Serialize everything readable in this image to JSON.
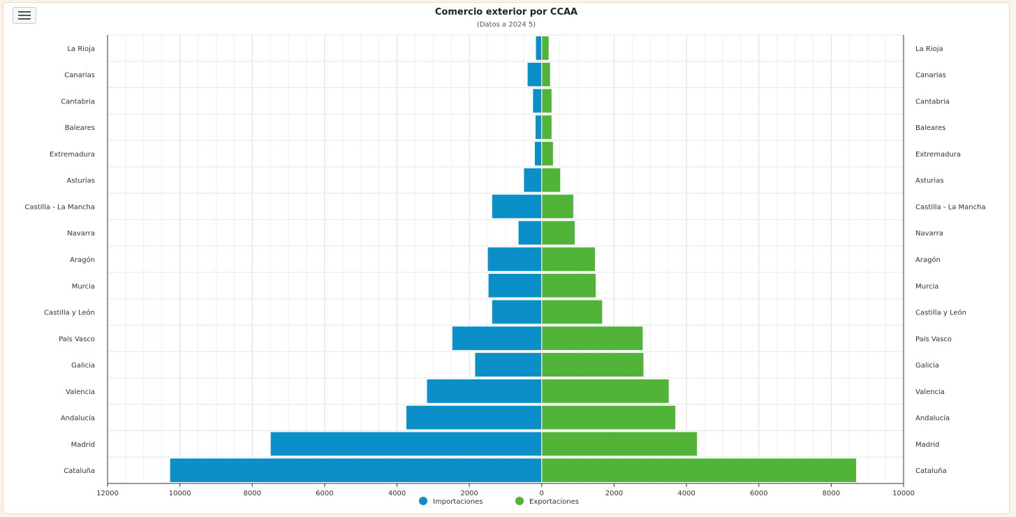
{
  "menu": {
    "icon": "hamburger-menu-icon"
  },
  "chart_data": {
    "type": "bar",
    "orientation": "horizontal",
    "title": "Comercio exterior por CCAA",
    "subtitle": "(Datos a 2024 5)",
    "categories": [
      "La Rioja",
      "Canarias",
      "Cantabria",
      "Baleares",
      "Extremadura",
      "Asturias",
      "Castilla - La Mancha",
      "Navarra",
      "Aragón",
      "Murcia",
      "Castilla y León",
      "País Vasco",
      "Galicia",
      "Valencia",
      "Andalucía",
      "Madrid",
      "Cataluña"
    ],
    "series": [
      {
        "name": "Importaciones",
        "color": "#0a8fc9",
        "direction": "left",
        "values": [
          170,
          400,
          250,
          180,
          200,
          500,
          1380,
          650,
          1500,
          1480,
          1380,
          2480,
          1850,
          3180,
          3750,
          7500,
          10280
        ]
      },
      {
        "name": "Exportaciones",
        "color": "#52b339",
        "direction": "right",
        "values": [
          200,
          240,
          280,
          280,
          320,
          520,
          880,
          920,
          1480,
          1500,
          1680,
          2800,
          2820,
          3520,
          3700,
          4300,
          8700
        ]
      }
    ],
    "xlim": [
      -12000,
      10000
    ],
    "xticks": [
      -12000,
      -10000,
      -8000,
      -6000,
      -4000,
      -2000,
      0,
      2000,
      4000,
      6000,
      8000,
      10000
    ],
    "xtick_labels": [
      "12000",
      "10000",
      "8000",
      "6000",
      "4000",
      "2000",
      "0",
      "2000",
      "4000",
      "6000",
      "8000",
      "10000"
    ],
    "grid": true,
    "legend": "bottom-center"
  }
}
